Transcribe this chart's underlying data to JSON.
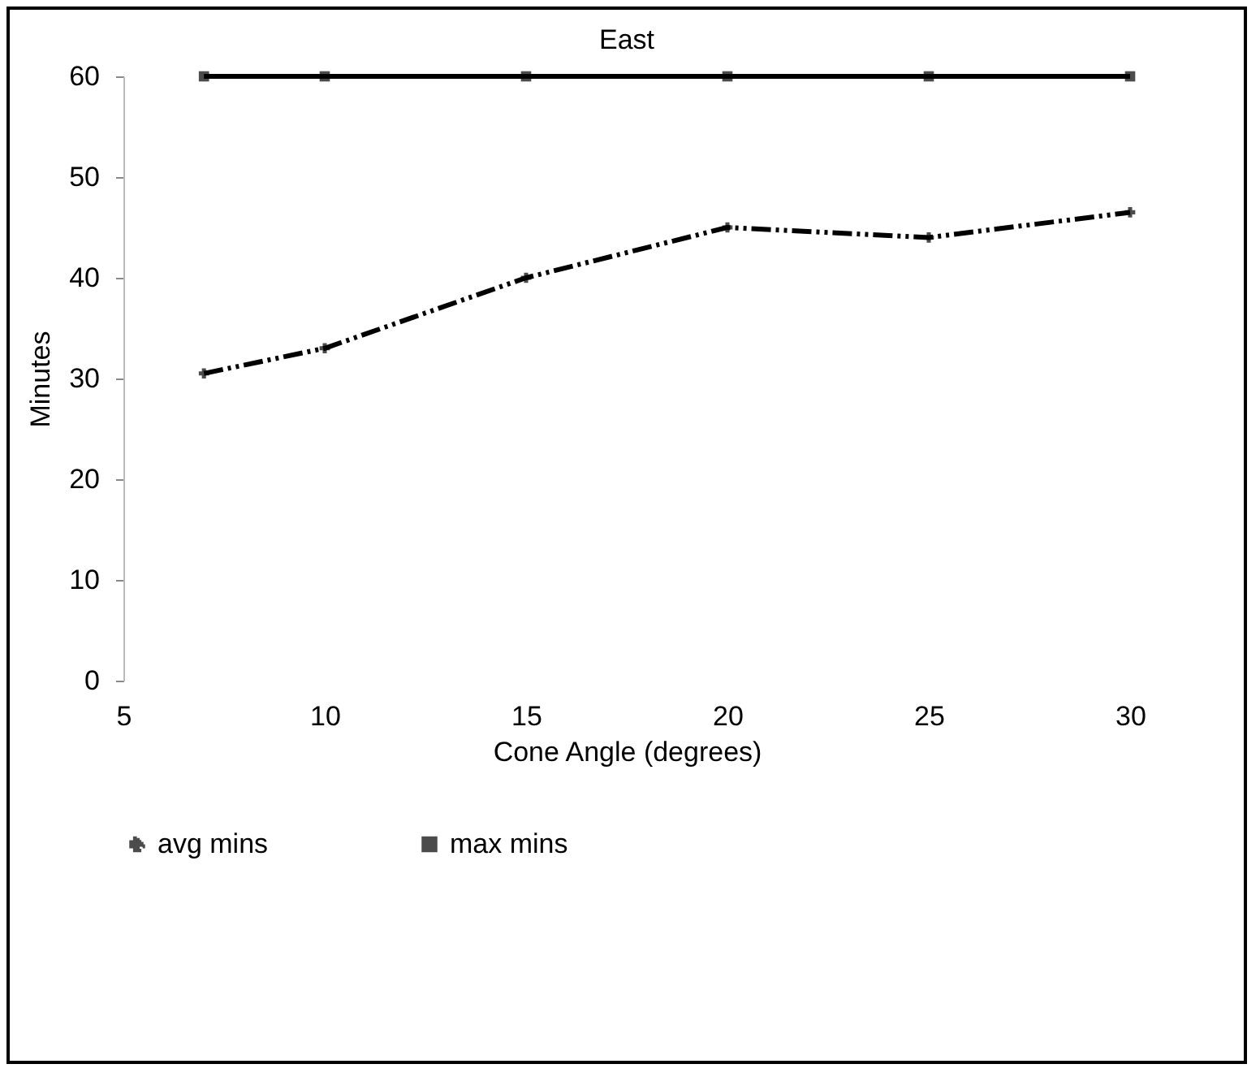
{
  "chart_data": {
    "type": "line",
    "title": "East",
    "xlabel": "Cone Angle (degrees)",
    "ylabel": "Minutes",
    "x": [
      7,
      10,
      15,
      20,
      25,
      30
    ],
    "series": [
      {
        "name": "avg mins",
        "color": "#000000",
        "values": [
          30.5,
          33,
          40,
          45,
          44,
          46.5
        ],
        "marker": "cross",
        "line_style": "dashed"
      },
      {
        "name": "max mins",
        "color": "#000000",
        "values": [
          60,
          60,
          60,
          60,
          60,
          60
        ],
        "marker": "square",
        "line_style": "solid"
      }
    ],
    "xlim": [
      5,
      30
    ],
    "xticks": [
      5,
      10,
      15,
      20,
      25,
      30
    ],
    "ylim": [
      0,
      60
    ],
    "yticks": [
      0,
      10,
      20,
      30,
      40,
      50,
      60
    ],
    "grid": false,
    "legend": "bottom"
  }
}
